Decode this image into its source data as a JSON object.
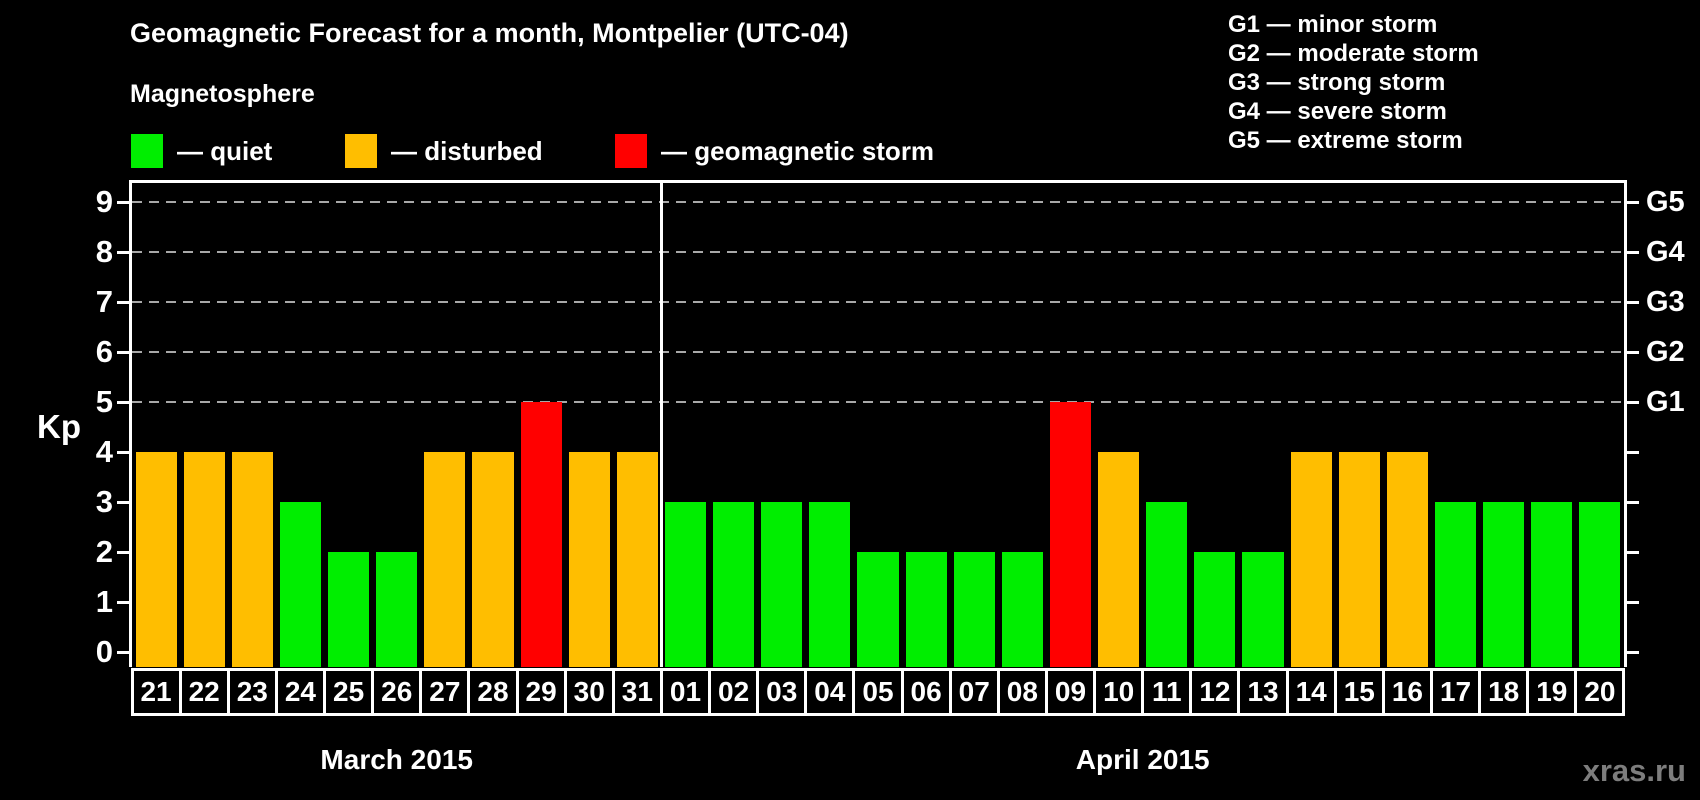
{
  "title": "Geomagnetic Forecast for a month, Montpelier (UTC-04)",
  "subtitle": "Magnetosphere",
  "legend": {
    "items": [
      {
        "key": "quiet",
        "label": "— quiet",
        "color": "#00ee00"
      },
      {
        "key": "disturbed",
        "label": "— disturbed",
        "color": "#ffbe00"
      },
      {
        "key": "storm",
        "label": "— geomagnetic storm",
        "color": "#ff0000"
      }
    ]
  },
  "g_legend": [
    "G1 — minor storm",
    "G2 — moderate storm",
    "G3 — strong storm",
    "G4 — severe storm",
    "G5 — extreme storm"
  ],
  "watermark": "xras.ru",
  "chart_data": {
    "type": "bar",
    "title": "Geomagnetic Forecast for a month, Montpelier (UTC-04)",
    "ylabel": "Kp",
    "ylim": [
      0,
      9
    ],
    "yticks": [
      0,
      1,
      2,
      3,
      4,
      5,
      6,
      7,
      8,
      9
    ],
    "grid_levels": [
      5,
      6,
      7,
      8,
      9
    ],
    "grid_style": "dashed",
    "right_axis_labels": {
      "5": "G1",
      "6": "G2",
      "7": "G3",
      "8": "G4",
      "9": "G5"
    },
    "colors": {
      "quiet": "#00ee00",
      "disturbed": "#ffbe00",
      "storm": "#ff0000"
    },
    "months": [
      {
        "label": "March 2015",
        "days": 11
      },
      {
        "label": "April 2015",
        "days": 20
      }
    ],
    "days": [
      {
        "day": "21",
        "kp": 4,
        "status": "disturbed"
      },
      {
        "day": "22",
        "kp": 4,
        "status": "disturbed"
      },
      {
        "day": "23",
        "kp": 4,
        "status": "disturbed"
      },
      {
        "day": "24",
        "kp": 3,
        "status": "quiet"
      },
      {
        "day": "25",
        "kp": 2,
        "status": "quiet"
      },
      {
        "day": "26",
        "kp": 2,
        "status": "quiet"
      },
      {
        "day": "27",
        "kp": 4,
        "status": "disturbed"
      },
      {
        "day": "28",
        "kp": 4,
        "status": "disturbed"
      },
      {
        "day": "29",
        "kp": 5,
        "status": "storm"
      },
      {
        "day": "30",
        "kp": 4,
        "status": "disturbed"
      },
      {
        "day": "31",
        "kp": 4,
        "status": "disturbed"
      },
      {
        "day": "01",
        "kp": 3,
        "status": "quiet"
      },
      {
        "day": "02",
        "kp": 3,
        "status": "quiet"
      },
      {
        "day": "03",
        "kp": 3,
        "status": "quiet"
      },
      {
        "day": "04",
        "kp": 3,
        "status": "quiet"
      },
      {
        "day": "05",
        "kp": 2,
        "status": "quiet"
      },
      {
        "day": "06",
        "kp": 2,
        "status": "quiet"
      },
      {
        "day": "07",
        "kp": 2,
        "status": "quiet"
      },
      {
        "day": "08",
        "kp": 2,
        "status": "quiet"
      },
      {
        "day": "09",
        "kp": 5,
        "status": "storm"
      },
      {
        "day": "10",
        "kp": 4,
        "status": "disturbed"
      },
      {
        "day": "11",
        "kp": 3,
        "status": "quiet"
      },
      {
        "day": "12",
        "kp": 2,
        "status": "quiet"
      },
      {
        "day": "13",
        "kp": 2,
        "status": "quiet"
      },
      {
        "day": "14",
        "kp": 4,
        "status": "disturbed"
      },
      {
        "day": "15",
        "kp": 4,
        "status": "disturbed"
      },
      {
        "day": "16",
        "kp": 4,
        "status": "disturbed"
      },
      {
        "day": "17",
        "kp": 3,
        "status": "quiet"
      },
      {
        "day": "18",
        "kp": 3,
        "status": "quiet"
      },
      {
        "day": "19",
        "kp": 3,
        "status": "quiet"
      },
      {
        "day": "20",
        "kp": 3,
        "status": "quiet"
      }
    ]
  }
}
